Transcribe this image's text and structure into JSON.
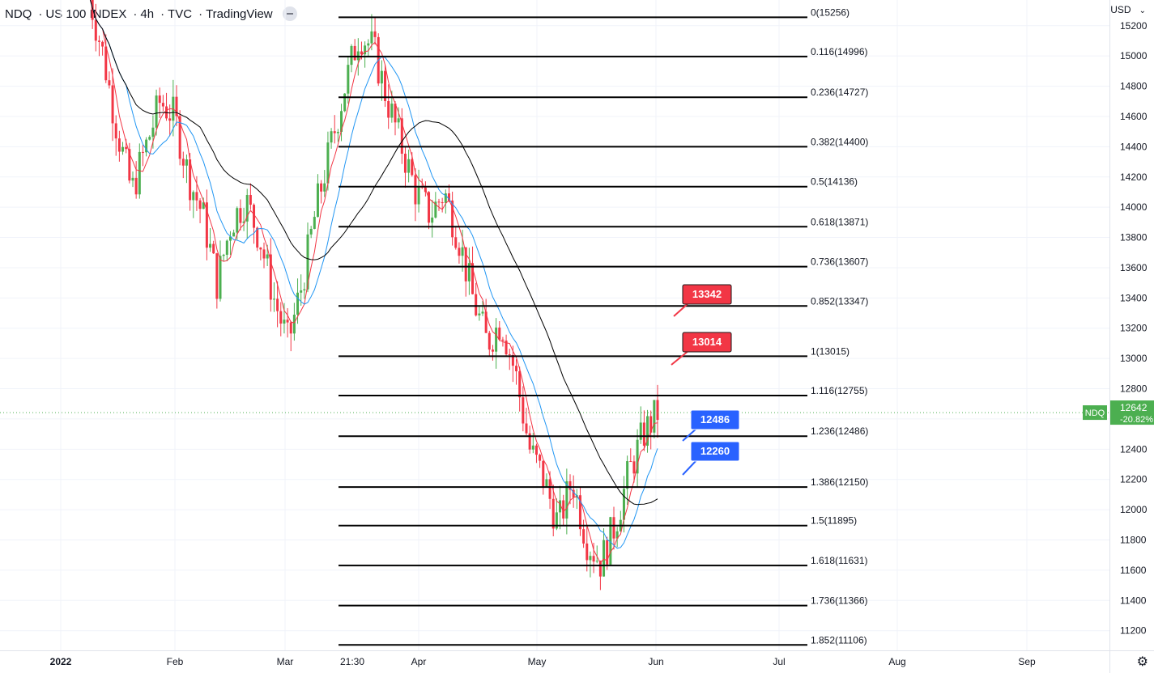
{
  "header": {
    "symbol": "NDQ",
    "name": "US 100 INDEX",
    "interval": "4h",
    "source": "TVC",
    "platform": "TradingView"
  },
  "currency": "USD",
  "colors": {
    "up": "#26a69a",
    "down": "#ef5350",
    "up_candle": "#4caf50",
    "down_candle": "#f23645",
    "fib_line": "#000000",
    "ma_fast": "#f23645",
    "ma_mid": "#2196f3",
    "ma_slow": "#000000",
    "label_red": "#f23645",
    "label_blue": "#2962ff",
    "price_tag": "#4caf50"
  },
  "chart_data": {
    "type": "candlestick",
    "y_range": [
      11070,
      15370
    ],
    "y_ticks": [
      11200,
      11400,
      11600,
      11800,
      12000,
      12200,
      12400,
      12600,
      12800,
      13000,
      13200,
      13400,
      13600,
      13800,
      14000,
      14200,
      14400,
      14600,
      14800,
      15000,
      15200
    ],
    "x_labels": [
      "2022",
      "Feb",
      "Mar",
      "21:30",
      "Apr",
      "May",
      "Jun",
      "Jul",
      "Aug",
      "Sep"
    ],
    "fib_levels": [
      {
        "ratio": "0",
        "value": 15256,
        "label": "0(15256)"
      },
      {
        "ratio": "0.116",
        "value": 14996,
        "label": "0.116(14996)"
      },
      {
        "ratio": "0.236",
        "value": 14727,
        "label": "0.236(14727)"
      },
      {
        "ratio": "0.382",
        "value": 14400,
        "label": "0.382(14400)"
      },
      {
        "ratio": "0.5",
        "value": 14136,
        "label": "0.5(14136)"
      },
      {
        "ratio": "0.618",
        "value": 13871,
        "label": "0.618(13871)"
      },
      {
        "ratio": "0.736",
        "value": 13607,
        "label": "0.736(13607)"
      },
      {
        "ratio": "0.852",
        "value": 13347,
        "label": "0.852(13347)"
      },
      {
        "ratio": "1",
        "value": 13015,
        "label": "1(13015)"
      },
      {
        "ratio": "1.116",
        "value": 12755,
        "label": "1.116(12755)"
      },
      {
        "ratio": "1.236",
        "value": 12486,
        "label": "1.236(12486)"
      },
      {
        "ratio": "1.386",
        "value": 12150,
        "label": "1.386(12150)"
      },
      {
        "ratio": "1.5",
        "value": 11895,
        "label": "1.5(11895)"
      },
      {
        "ratio": "1.618",
        "value": 11631,
        "label": "1.618(11631)"
      },
      {
        "ratio": "1.736",
        "value": 11366,
        "label": "1.736(11366)"
      },
      {
        "ratio": "1.852",
        "value": 11106,
        "label": "1.852(11106)"
      }
    ],
    "callouts": [
      {
        "text": "13342",
        "value": 13342,
        "color": "red"
      },
      {
        "text": "13014",
        "value": 13014,
        "color": "red"
      },
      {
        "text": "12486",
        "value": 12486,
        "color": "blue"
      },
      {
        "text": "12260",
        "value": 12260,
        "color": "blue"
      }
    ],
    "last_price": {
      "symbol": "NDQ",
      "value": 12642,
      "value_text": "12642",
      "change_text": "-20.82%"
    },
    "price_path": [
      [
        0.0,
        15400
      ],
      [
        0.025,
        15000
      ],
      [
        0.05,
        14500
      ],
      [
        0.075,
        14100
      ],
      [
        0.1,
        14400
      ],
      [
        0.125,
        14700
      ],
      [
        0.15,
        14600
      ],
      [
        0.175,
        14200
      ],
      [
        0.2,
        13950
      ],
      [
        0.225,
        13500
      ],
      [
        0.25,
        13900
      ],
      [
        0.275,
        14050
      ],
      [
        0.3,
        13800
      ],
      [
        0.325,
        13400
      ],
      [
        0.35,
        13100
      ],
      [
        0.375,
        13500
      ],
      [
        0.4,
        14000
      ],
      [
        0.425,
        14400
      ],
      [
        0.45,
        14800
      ],
      [
        0.475,
        15150
      ],
      [
        0.5,
        15050
      ],
      [
        0.525,
        14700
      ],
      [
        0.55,
        14400
      ],
      [
        0.575,
        14100
      ],
      [
        0.6,
        13950
      ],
      [
        0.625,
        14100
      ],
      [
        0.65,
        13800
      ],
      [
        0.675,
        13400
      ],
      [
        0.7,
        13100
      ],
      [
        0.725,
        13250
      ],
      [
        0.75,
        12900
      ],
      [
        0.775,
        12400
      ],
      [
        0.8,
        12200
      ],
      [
        0.825,
        11900
      ],
      [
        0.85,
        12200
      ],
      [
        0.875,
        11800
      ],
      [
        0.9,
        11650
      ],
      [
        0.925,
        11900
      ],
      [
        0.95,
        12250
      ],
      [
        0.975,
        12500
      ],
      [
        1.0,
        12642
      ]
    ]
  }
}
